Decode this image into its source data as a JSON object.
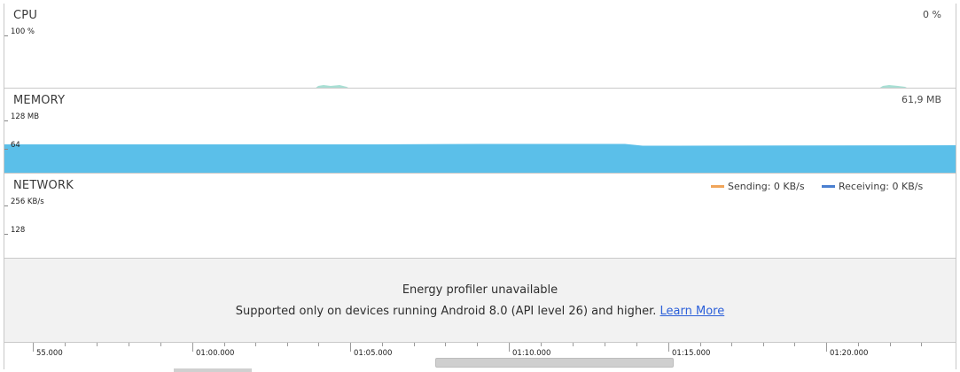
{
  "cpu": {
    "title": "CPU",
    "value": "0 %",
    "axis_max": "100 %"
  },
  "memory": {
    "title": "MEMORY",
    "value": "61,9 MB",
    "axis_max": "128 MB",
    "axis_mid": "64",
    "fill_color": "#5bbfe9"
  },
  "network": {
    "title": "NETWORK",
    "axis_max": "256 KB/s",
    "axis_mid": "128",
    "legend": [
      {
        "label": "Sending: 0 KB/s",
        "color": "#f0a55a"
      },
      {
        "label": "Receiving: 0 KB/s",
        "color": "#4a7fd0"
      }
    ]
  },
  "energy": {
    "title": "Energy profiler unavailable",
    "message": "Supported only on devices running Android 8.0 (API level 26) and higher.",
    "link": "Learn More"
  },
  "timeline": {
    "labels": [
      "55.000",
      "01:00.000",
      "01:05.000",
      "01:10.000",
      "01:15.000",
      "01:20.000"
    ]
  }
}
